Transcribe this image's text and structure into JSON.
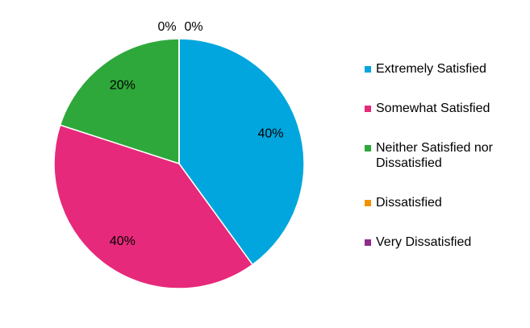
{
  "chart_data": {
    "type": "pie",
    "categories": [
      "Extremely Satisfied",
      "Somewhat Satisfied",
      "Neither Satisfied nor Dissatisfied",
      "Dissatisfied",
      "Very Dissatisfied"
    ],
    "values": [
      40,
      40,
      20,
      0,
      0
    ],
    "value_labels": [
      "40%",
      "40%",
      "20%",
      "0%",
      "0%"
    ],
    "colors": [
      "#00a6dd",
      "#e6297a",
      "#2ea83a",
      "#f39200",
      "#8e2b8c"
    ],
    "legend": "right"
  }
}
